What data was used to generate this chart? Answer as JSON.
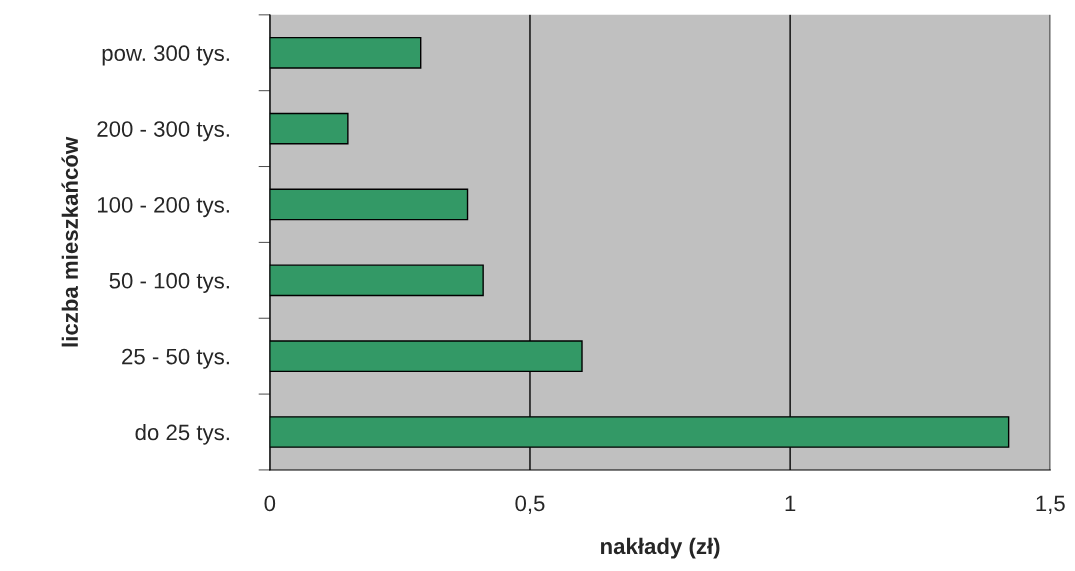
{
  "chart_data": {
    "type": "bar",
    "orientation": "horizontal",
    "categories": [
      "pow. 300 tys.",
      "200 - 300 tys.",
      "100 - 200 tys.",
      "50 - 100 tys.",
      "25 - 50 tys.",
      "do 25 tys."
    ],
    "values": [
      0.29,
      0.15,
      0.38,
      0.41,
      0.6,
      1.42
    ],
    "color": "#339966",
    "xlabel": "nakłady (zł)",
    "ylabel": "liczba mieszkańców",
    "xlim": [
      0,
      1.5
    ],
    "xticks": [
      0,
      {
        "value": 0.5,
        "label": "0,5"
      },
      1,
      {
        "value": 1.5,
        "label": "1,5"
      }
    ],
    "grid": "x"
  }
}
